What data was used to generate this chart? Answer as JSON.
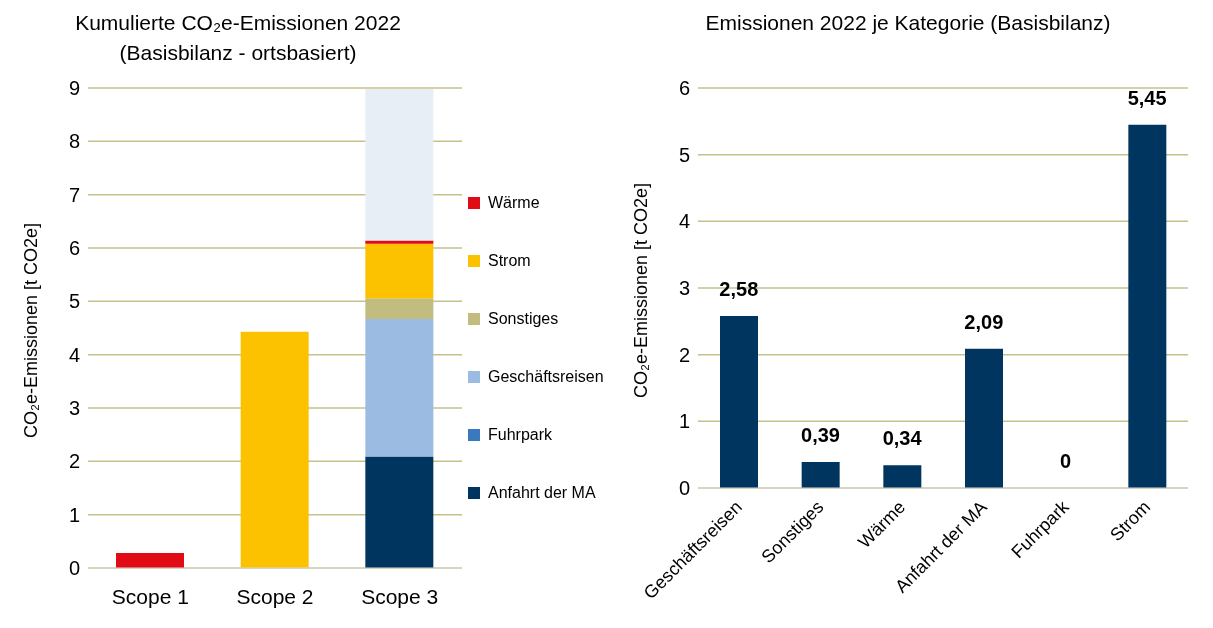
{
  "chart_data": [
    {
      "type": "bar",
      "stacked": true,
      "title": "Kumulierte CO₂e-Emissionen 2022\n(Basisbilanz - ortsbasiert)",
      "ylabel": "CO₂e-Emissionen [t CO2e]",
      "categories": [
        "Scope 1",
        "Scope 2",
        "Scope 3"
      ],
      "ylim": [
        0,
        9
      ],
      "yticks": [
        0,
        1,
        2,
        3,
        4,
        5,
        6,
        7,
        8,
        9
      ],
      "grid": "y",
      "legend": "right",
      "series": [
        {
          "name": "Anfahrt der MA",
          "color": "#003560",
          "values": [
            0,
            0,
            2.09
          ]
        },
        {
          "name": "Fuhrpark",
          "color": "#3a78c0",
          "values": [
            0,
            0,
            0
          ]
        },
        {
          "name": "Geschäftsreisen",
          "color": "#9bbbe3",
          "values": [
            0,
            0,
            2.58
          ]
        },
        {
          "name": "Sonstiges",
          "color": "#c2bc7e",
          "values": [
            0,
            0,
            0.39
          ]
        },
        {
          "name": "Strom",
          "color": "#fcc200",
          "values": [
            0,
            4.43,
            1.02
          ]
        },
        {
          "name": "Wärme",
          "color": "#e00b14",
          "values": [
            0.28,
            0,
            0.06
          ]
        },
        {
          "color": "#e8eef6",
          "values": [
            null,
            null,
            2.84
          ]
        }
      ]
    },
    {
      "type": "bar",
      "title": "Emissionen 2022 je Kategorie (Basisbilanz)",
      "ylabel": "CO₂e-Emissionen [t CO2e]",
      "categories": [
        "Geschäftsreisen",
        "Sonstiges",
        "Wärme",
        "Anfahrt der MA",
        "Fuhrpark",
        "Strom"
      ],
      "values": [
        2.58,
        0.39,
        0.34,
        2.09,
        0,
        5.45
      ],
      "value_labels": [
        "2,58",
        "0,39",
        "0,34",
        "2,09",
        "0",
        "5,45"
      ],
      "color": "#003560",
      "ylim": [
        0,
        6
      ],
      "yticks": [
        0,
        1,
        2,
        3,
        4,
        5,
        6
      ],
      "grid": "y"
    }
  ]
}
